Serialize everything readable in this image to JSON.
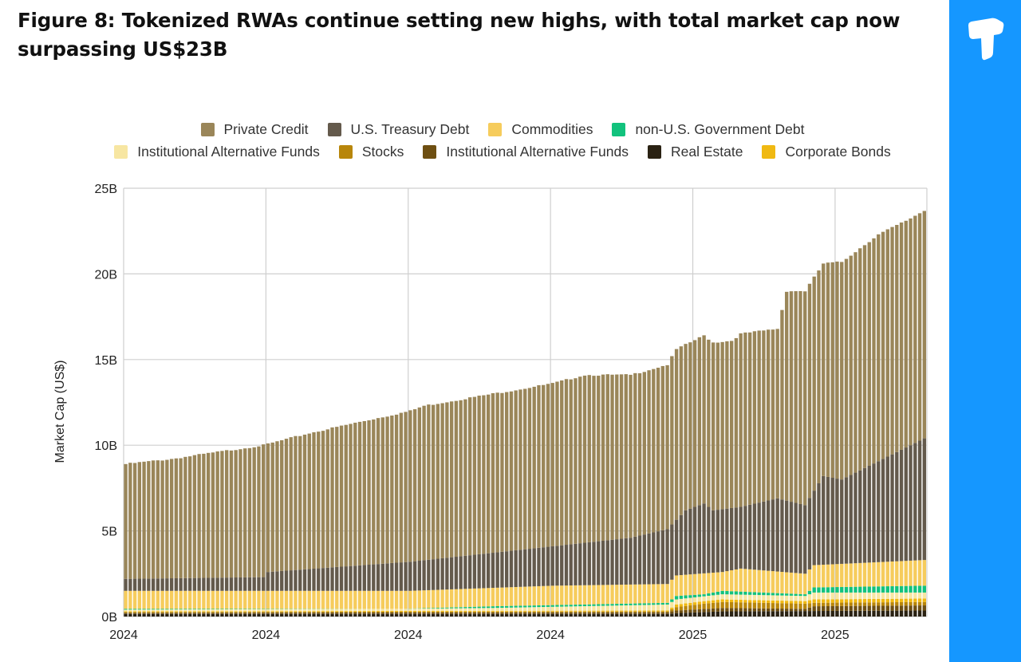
{
  "header": {
    "title": "Figure 8: Tokenized RWAs continue setting new highs, with total market cap now surpassing US$23B"
  },
  "brand": {
    "color": "#1597ff",
    "logo_icon": "t-block-icon"
  },
  "chart_data": {
    "type": "stacked-bar",
    "title": "Figure 8: Tokenized RWAs continue setting new highs, with total market cap now surpassing US$23B",
    "xlabel": "",
    "ylabel": "Market Cap (US$)",
    "ylim": [
      0,
      25
    ],
    "y_ticks": [
      0,
      5,
      10,
      15,
      20,
      25
    ],
    "y_tick_labels": [
      "0B",
      "5B",
      "10B",
      "15B",
      "20B",
      "25B"
    ],
    "x_tick_labels": [
      "2024",
      "2024",
      "2024",
      "2024",
      "2025",
      "2025"
    ],
    "x_tick_bar_index": [
      0,
      31,
      62,
      93,
      124,
      155
    ],
    "grid": true,
    "legend_position": "top",
    "value_unit": "US$ billions",
    "series_order_bottom_to_top": [
      "Real Estate",
      "Institutional Alternative Funds (2)",
      "Stocks",
      "Corporate Bonds",
      "Institutional Alternative Funds",
      "non-U.S. Government Debt",
      "Commodities",
      "U.S. Treasury Debt",
      "Private Credit"
    ],
    "legend": [
      {
        "name": "Private Credit",
        "color": "#9a8659"
      },
      {
        "name": "U.S. Treasury Debt",
        "color": "#645a4c"
      },
      {
        "name": "Commodities",
        "color": "#f6cc5c"
      },
      {
        "name": "non-U.S. Government Debt",
        "color": "#12c27d"
      },
      {
        "name": "Institutional Alternative Funds",
        "color": "#f7e6a2"
      },
      {
        "name": "Stocks",
        "color": "#b8860b"
      },
      {
        "name": "Institutional Alternative Funds",
        "color": "#6e4f12"
      },
      {
        "name": "Real Estate",
        "color": "#2a2213"
      },
      {
        "name": "Corporate Bonds",
        "color": "#f0b912"
      }
    ],
    "total_keyframes": [
      [
        0,
        8.9
      ],
      [
        10,
        9.2
      ],
      [
        20,
        9.6
      ],
      [
        30,
        10.0
      ],
      [
        40,
        10.7
      ],
      [
        50,
        11.3
      ],
      [
        62,
        12.0
      ],
      [
        65,
        12.3
      ],
      [
        80,
        13.0
      ],
      [
        93,
        13.6
      ],
      [
        100,
        14.1
      ],
      [
        110,
        14.1
      ],
      [
        118,
        14.7
      ],
      [
        120,
        15.6
      ],
      [
        126,
        16.4
      ],
      [
        128,
        16.0
      ],
      [
        132,
        16.1
      ],
      [
        134,
        16.5
      ],
      [
        142,
        16.8
      ],
      [
        144,
        19.0
      ],
      [
        148,
        19.0
      ],
      [
        150,
        19.8
      ],
      [
        152,
        20.6
      ],
      [
        156,
        20.7
      ],
      [
        164,
        22.3
      ],
      [
        170,
        23.1
      ],
      [
        174,
        23.7
      ]
    ],
    "us_treasury_top_keyframes": [
      [
        0,
        2.2
      ],
      [
        30,
        2.3
      ],
      [
        31,
        2.6
      ],
      [
        62,
        3.2
      ],
      [
        93,
        4.1
      ],
      [
        110,
        4.6
      ],
      [
        118,
        5.1
      ],
      [
        122,
        6.2
      ],
      [
        126,
        6.6
      ],
      [
        128,
        6.2
      ],
      [
        134,
        6.4
      ],
      [
        142,
        6.9
      ],
      [
        148,
        6.5
      ],
      [
        152,
        8.2
      ],
      [
        156,
        8.0
      ],
      [
        174,
        10.4
      ]
    ],
    "commodities_top_keyframes": [
      [
        0,
        1.5
      ],
      [
        62,
        1.5
      ],
      [
        93,
        1.8
      ],
      [
        118,
        1.9
      ],
      [
        120,
        2.4
      ],
      [
        130,
        2.6
      ],
      [
        134,
        2.8
      ],
      [
        148,
        2.5
      ],
      [
        150,
        3.0
      ],
      [
        174,
        3.3
      ]
    ],
    "non_us_gov_top_keyframes": [
      [
        0,
        0.45
      ],
      [
        60,
        0.45
      ],
      [
        80,
        0.6
      ],
      [
        118,
        0.8
      ],
      [
        120,
        1.2
      ],
      [
        126,
        1.3
      ],
      [
        130,
        1.5
      ],
      [
        148,
        1.3
      ],
      [
        150,
        1.7
      ],
      [
        174,
        1.8
      ]
    ],
    "inst_alt_funds_top_keyframes": [
      [
        0,
        0.4
      ],
      [
        60,
        0.45
      ],
      [
        80,
        0.5
      ],
      [
        118,
        0.7
      ],
      [
        120,
        1.0
      ],
      [
        130,
        1.3
      ],
      [
        148,
        1.2
      ],
      [
        150,
        1.4
      ],
      [
        174,
        1.4
      ]
    ],
    "corporate_bonds_top_keyframes": [
      [
        0,
        0.3
      ],
      [
        118,
        0.35
      ],
      [
        120,
        0.7
      ],
      [
        126,
        0.9
      ],
      [
        130,
        1.0
      ],
      [
        148,
        0.9
      ],
      [
        150,
        1.0
      ],
      [
        174,
        1.05
      ]
    ],
    "stocks_top_keyframes": [
      [
        0,
        0.26
      ],
      [
        118,
        0.3
      ],
      [
        120,
        0.55
      ],
      [
        126,
        0.75
      ],
      [
        130,
        0.85
      ],
      [
        148,
        0.75
      ],
      [
        150,
        0.8
      ],
      [
        174,
        0.85
      ]
    ],
    "inst_alt_funds_2_top_keyframes": [
      [
        0,
        0.22
      ],
      [
        118,
        0.25
      ],
      [
        120,
        0.35
      ],
      [
        130,
        0.5
      ],
      [
        148,
        0.45
      ],
      [
        150,
        0.6
      ],
      [
        174,
        0.65
      ]
    ],
    "real_estate_top_keyframes": [
      [
        0,
        0.15
      ],
      [
        118,
        0.15
      ],
      [
        120,
        0.2
      ],
      [
        130,
        0.3
      ],
      [
        174,
        0.35
      ]
    ],
    "bar_count": 175
  }
}
